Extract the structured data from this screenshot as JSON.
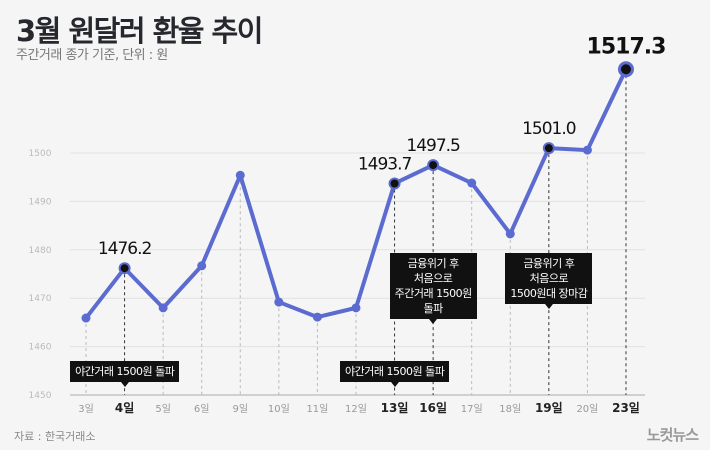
{
  "title": "3월 원달러 환율 추이",
  "subtitle": "주간거래 종가 기준, 단위 : 원",
  "source": "자료 : 한국거래소",
  "logo": "노컷뉴스",
  "chart_data": {
    "type": "line",
    "categories": [
      "3일",
      "4일",
      "5일",
      "6일",
      "9일",
      "10일",
      "11일",
      "12일",
      "13일",
      "16일",
      "17일",
      "18일",
      "19일",
      "20일",
      "23일"
    ],
    "values": [
      1465.9,
      1476.2,
      1468.0,
      1476.7,
      1495.4,
      1469.2,
      1466.1,
      1468.0,
      1493.7,
      1497.5,
      1493.8,
      1483.3,
      1501.0,
      1500.6,
      1517.3
    ],
    "data_labels": {
      "1": "1476.2",
      "8": "1493.7",
      "9": "1497.5",
      "12": "1501.0",
      "14": "1517.3"
    },
    "highlighted": [
      1,
      8,
      9,
      12,
      14
    ],
    "ylim": [
      1450,
      1520
    ],
    "yticks": [
      1450,
      1460,
      1470,
      1480,
      1490,
      1500
    ],
    "grid": true,
    "line_color": "#5b6bd0",
    "annotations": [
      {
        "target": 1,
        "text": "야간거래 1500원 돌파"
      },
      {
        "target": 8,
        "text": "야간거래 1500원 돌파"
      },
      {
        "target": 9,
        "text": "금융위기 후\n처음으로\n주간거래 1500원\n돌파"
      },
      {
        "target": 12,
        "text": "금융위기 후\n처음으로\n1500원대 장마감"
      }
    ]
  }
}
